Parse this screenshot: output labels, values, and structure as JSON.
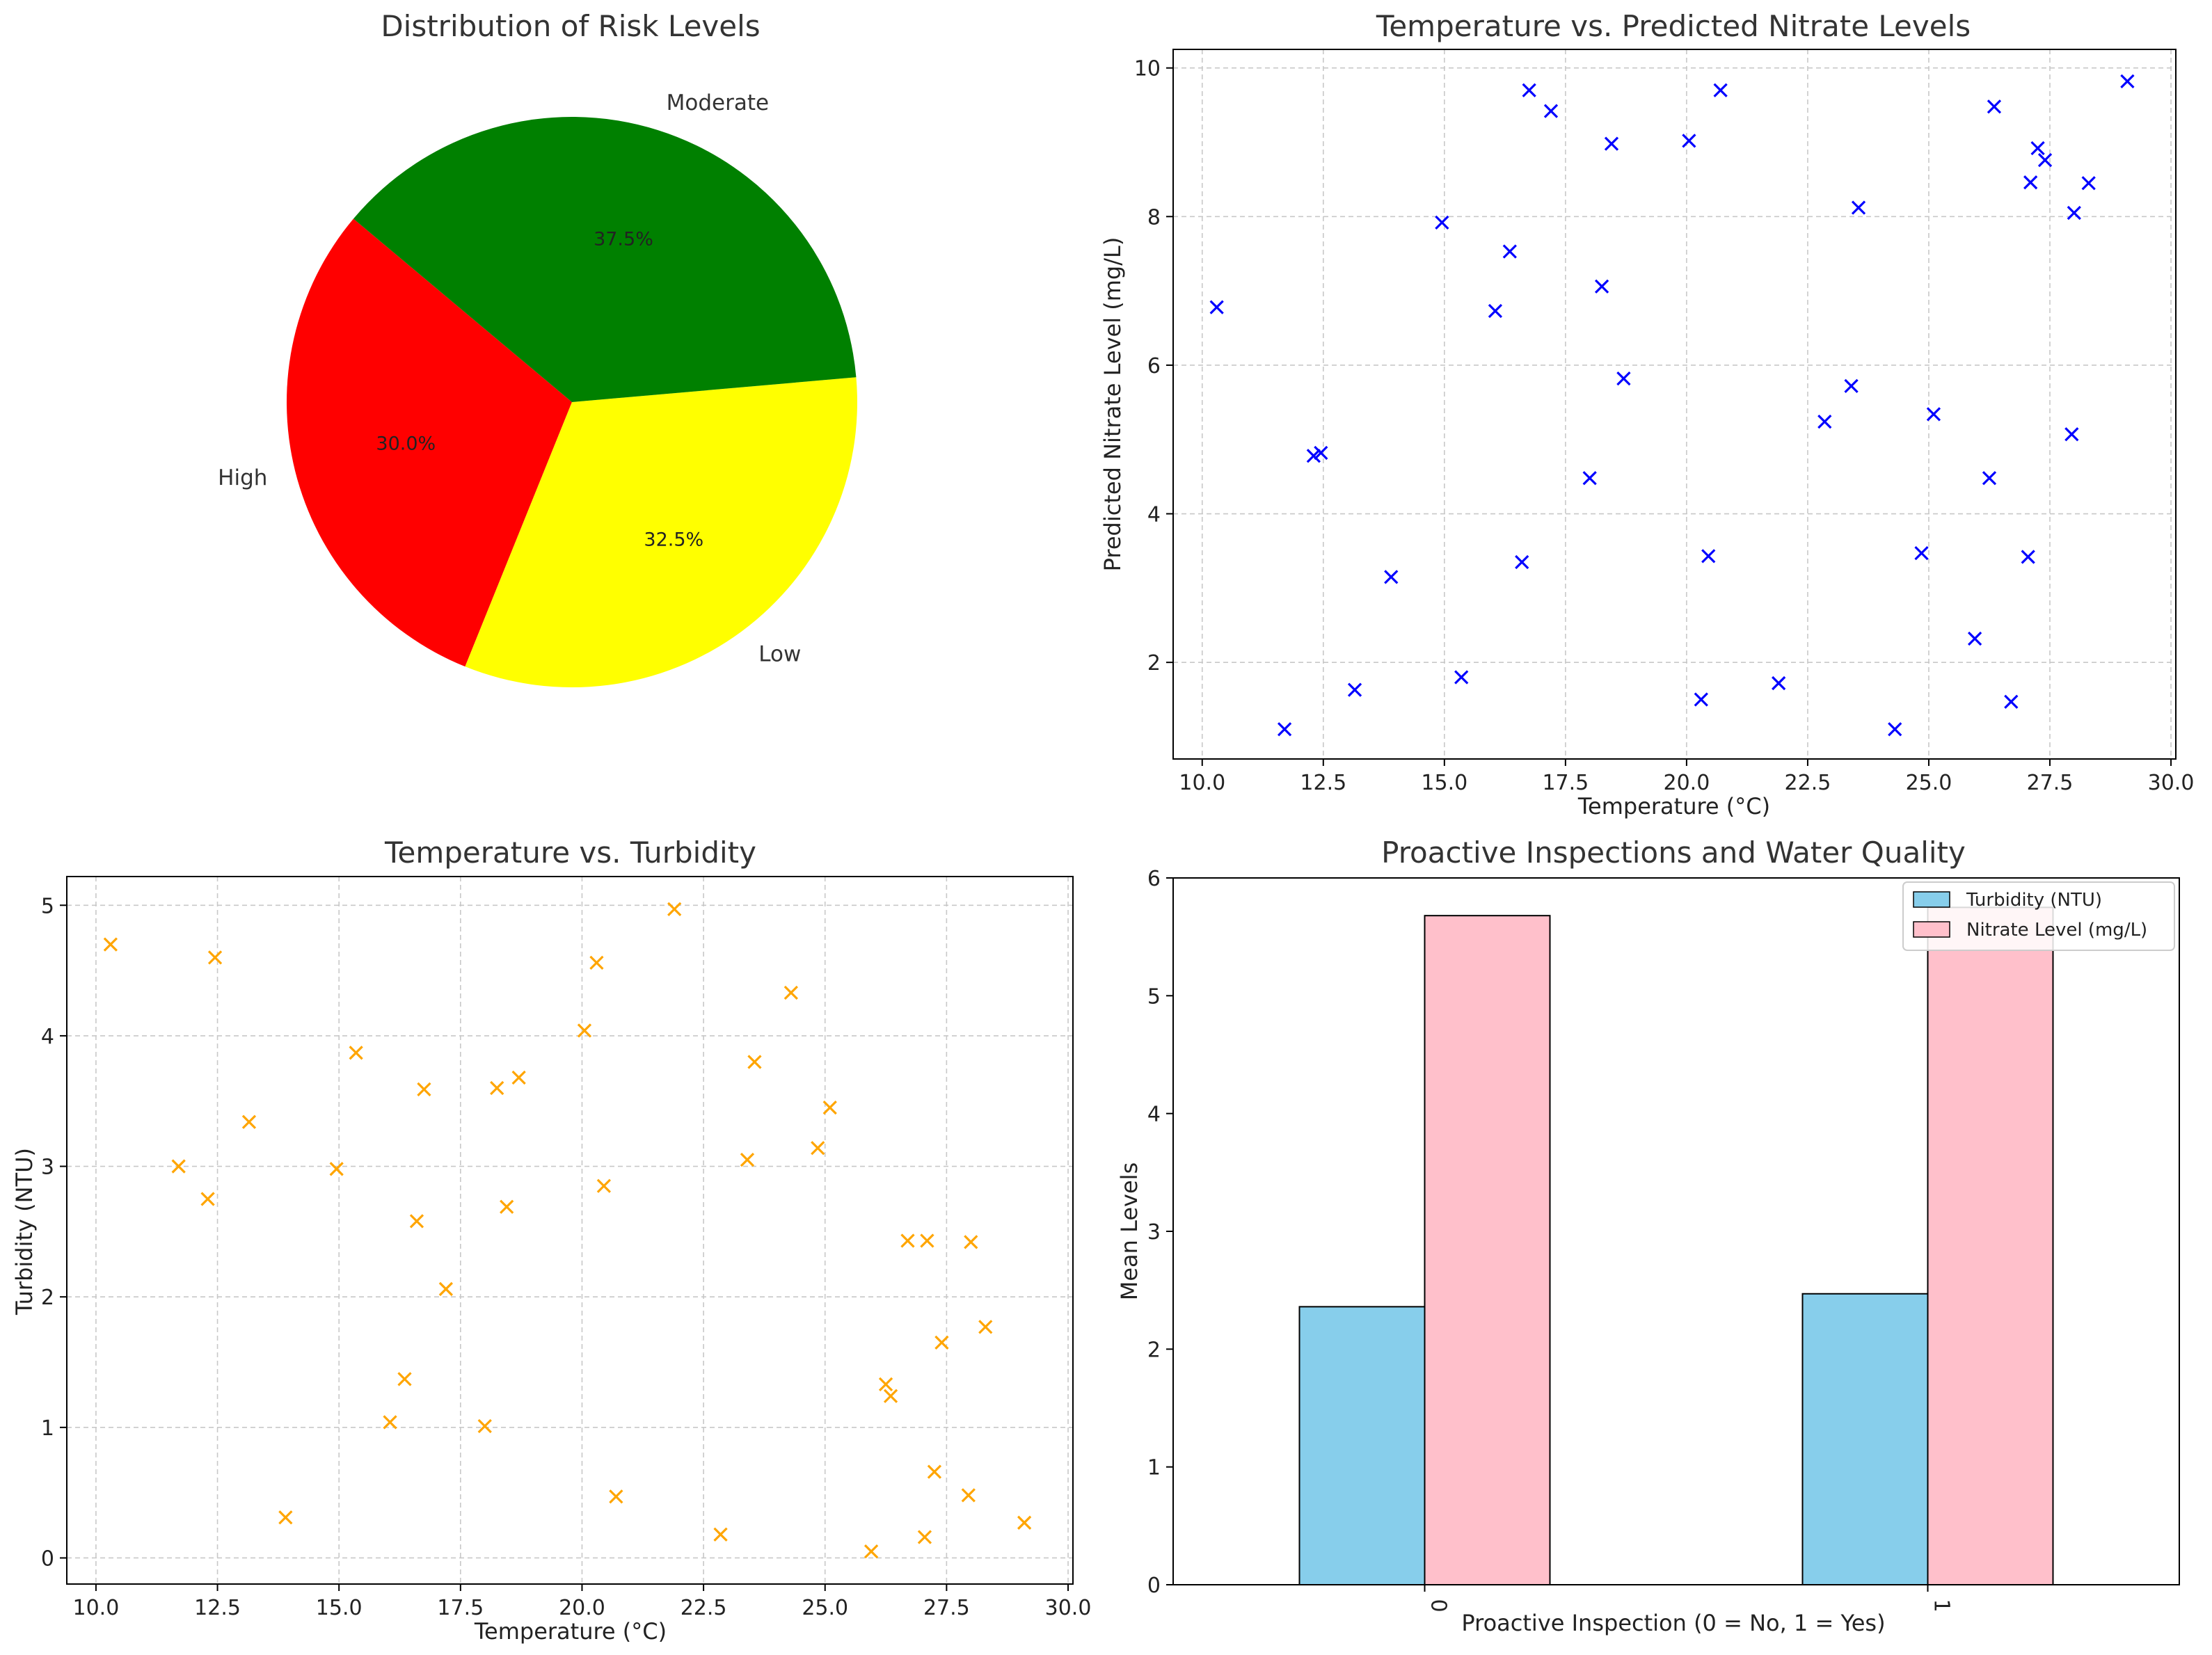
{
  "chart_data": [
    {
      "type": "pie",
      "title": "Distribution of Risk Levels",
      "slices": [
        {
          "label": "High",
          "value": 30.0,
          "pct_label": "30.0%",
          "color": "#ff0000"
        },
        {
          "label": "Low",
          "value": 32.5,
          "pct_label": "32.5%",
          "color": "#ffff00"
        },
        {
          "label": "Moderate",
          "value": 37.5,
          "pct_label": "37.5%",
          "color": "#008000"
        }
      ],
      "start_angle_deg": 140,
      "direction": "counterclockwise"
    },
    {
      "type": "scatter",
      "title": "Temperature vs. Predicted Nitrate Levels",
      "xlabel": "Temperature (°C)",
      "ylabel": "Predicted Nitrate Level (mg/L)",
      "xlim": [
        9.4,
        30.1
      ],
      "ylim": [
        0.7,
        10.25
      ],
      "xticks": [
        10.0,
        12.5,
        15.0,
        17.5,
        20.0,
        22.5,
        25.0,
        27.5,
        30.0
      ],
      "xtick_labels": [
        "10.0",
        "12.5",
        "15.0",
        "17.5",
        "20.0",
        "22.5",
        "25.0",
        "27.5",
        "30.0"
      ],
      "yticks": [
        2,
        4,
        6,
        8,
        10
      ],
      "ytick_labels": [
        "2",
        "4",
        "6",
        "8",
        "10"
      ],
      "marker": "x",
      "color": "#0000ff",
      "grid": true,
      "points": [
        [
          10.3,
          6.78
        ],
        [
          11.7,
          1.1
        ],
        [
          12.3,
          4.78
        ],
        [
          12.45,
          4.82
        ],
        [
          13.15,
          1.63
        ],
        [
          13.9,
          3.15
        ],
        [
          14.95,
          7.92
        ],
        [
          15.35,
          1.8
        ],
        [
          16.05,
          6.73
        ],
        [
          16.35,
          7.53
        ],
        [
          16.6,
          3.35
        ],
        [
          16.75,
          9.7
        ],
        [
          17.2,
          9.42
        ],
        [
          18.0,
          4.48
        ],
        [
          18.25,
          7.06
        ],
        [
          18.45,
          8.98
        ],
        [
          18.7,
          5.82
        ],
        [
          20.05,
          9.02
        ],
        [
          20.3,
          1.5
        ],
        [
          20.45,
          3.43
        ],
        [
          20.7,
          9.7
        ],
        [
          21.9,
          1.72
        ],
        [
          22.85,
          5.24
        ],
        [
          23.4,
          5.72
        ],
        [
          23.55,
          8.12
        ],
        [
          24.3,
          1.1
        ],
        [
          24.85,
          3.47
        ],
        [
          25.1,
          5.34
        ],
        [
          25.95,
          2.32
        ],
        [
          26.25,
          4.48
        ],
        [
          26.35,
          9.48
        ],
        [
          26.7,
          1.47
        ],
        [
          27.05,
          3.42
        ],
        [
          27.1,
          8.46
        ],
        [
          27.25,
          8.92
        ],
        [
          27.4,
          8.76
        ],
        [
          27.95,
          5.07
        ],
        [
          28.0,
          8.05
        ],
        [
          28.3,
          8.45
        ],
        [
          29.1,
          9.82
        ]
      ]
    },
    {
      "type": "scatter",
      "title": "Temperature vs. Turbidity",
      "xlabel": "Temperature (°C)",
      "ylabel": "Turbidity (NTU)",
      "xlim": [
        9.4,
        30.1
      ],
      "ylim": [
        -0.2,
        5.22
      ],
      "xticks": [
        10.0,
        12.5,
        15.0,
        17.5,
        20.0,
        22.5,
        25.0,
        27.5,
        30.0
      ],
      "xtick_labels": [
        "10.0",
        "12.5",
        "15.0",
        "17.5",
        "20.0",
        "22.5",
        "25.0",
        "27.5",
        "30.0"
      ],
      "yticks": [
        0,
        1,
        2,
        3,
        4,
        5
      ],
      "ytick_labels": [
        "0",
        "1",
        "2",
        "3",
        "4",
        "5"
      ],
      "marker": "x",
      "color": "#ffa500",
      "grid": true,
      "points": [
        [
          10.3,
          4.7
        ],
        [
          11.7,
          3.0
        ],
        [
          12.3,
          2.75
        ],
        [
          12.45,
          4.6
        ],
        [
          13.15,
          3.34
        ],
        [
          13.9,
          0.31
        ],
        [
          14.95,
          2.98
        ],
        [
          15.35,
          3.87
        ],
        [
          16.05,
          1.04
        ],
        [
          16.35,
          1.37
        ],
        [
          16.6,
          2.58
        ],
        [
          16.75,
          3.59
        ],
        [
          17.2,
          2.06
        ],
        [
          18.0,
          1.01
        ],
        [
          18.25,
          3.6
        ],
        [
          18.45,
          2.69
        ],
        [
          18.7,
          3.68
        ],
        [
          20.05,
          4.04
        ],
        [
          20.3,
          4.56
        ],
        [
          20.45,
          2.85
        ],
        [
          20.7,
          0.47
        ],
        [
          21.9,
          4.97
        ],
        [
          22.85,
          0.18
        ],
        [
          23.4,
          3.05
        ],
        [
          23.55,
          3.8
        ],
        [
          24.3,
          4.33
        ],
        [
          24.85,
          3.14
        ],
        [
          25.1,
          3.45
        ],
        [
          25.95,
          0.05
        ],
        [
          26.25,
          1.33
        ],
        [
          26.35,
          1.24
        ],
        [
          26.7,
          2.43
        ],
        [
          27.05,
          0.16
        ],
        [
          27.1,
          2.43
        ],
        [
          27.25,
          0.66
        ],
        [
          27.4,
          1.65
        ],
        [
          27.95,
          0.48
        ],
        [
          28.0,
          2.42
        ],
        [
          28.3,
          1.77
        ],
        [
          29.1,
          0.27
        ]
      ]
    },
    {
      "type": "bar",
      "title": "Proactive Inspections and Water Quality",
      "xlabel": "Proactive Inspection (0 = No, 1 = Yes)",
      "ylabel": "Mean Levels",
      "categories": [
        "0",
        "1"
      ],
      "ylim": [
        0,
        6
      ],
      "yticks": [
        0,
        1,
        2,
        3,
        4,
        5,
        6
      ],
      "ytick_labels": [
        "0",
        "1",
        "2",
        "3",
        "4",
        "5",
        "6"
      ],
      "legend_position": "top-right",
      "grid": false,
      "series": [
        {
          "name": "Turbidity (NTU)",
          "values": [
            2.36,
            2.47
          ],
          "color": "#87ceeb"
        },
        {
          "name": "Nitrate Level (mg/L)",
          "values": [
            5.68,
            5.75
          ],
          "color": "#ffc0cb"
        }
      ]
    }
  ]
}
